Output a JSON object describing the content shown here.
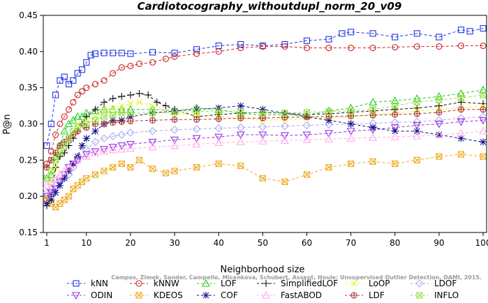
{
  "chart_data": {
    "type": "line",
    "title": "Cardiotocography_withoutdupl_norm_20_v09",
    "xlabel": "Neighborhood size",
    "ylabel": "P@n",
    "xlim": [
      1,
      100
    ],
    "ylim": [
      0.15,
      0.45
    ],
    "xticks": [
      "1",
      "10",
      "20",
      "30",
      "40",
      "50",
      "60",
      "70",
      "80",
      "90",
      "100"
    ],
    "yticks": [
      "0.15",
      "0.20",
      "0.25",
      "0.30",
      "0.35",
      "0.40",
      "0.45"
    ],
    "grid": false,
    "legend_position": "bottom",
    "credit": "Campos, Zimek, Sander, Campello, Micenkova, Schubert, Assent, Houle: Unsupervised Outlier Detection, DAMI, 2015.",
    "series": [
      {
        "name": "kNN",
        "color": "#2233dd",
        "marker": "square",
        "dash": "4,3",
        "x": [
          1,
          2,
          3,
          4,
          5,
          6,
          7,
          8,
          9,
          10,
          11,
          12,
          14,
          16,
          18,
          20,
          25,
          30,
          35,
          40,
          45,
          50,
          55,
          60,
          65,
          68,
          70,
          75,
          80,
          85,
          90,
          95,
          97,
          100
        ],
        "y": [
          0.27,
          0.3,
          0.34,
          0.36,
          0.365,
          0.355,
          0.36,
          0.37,
          0.375,
          0.385,
          0.395,
          0.397,
          0.398,
          0.398,
          0.398,
          0.397,
          0.399,
          0.398,
          0.403,
          0.408,
          0.41,
          0.408,
          0.41,
          0.415,
          0.417,
          0.425,
          0.427,
          0.425,
          0.42,
          0.425,
          0.42,
          0.43,
          0.428,
          0.432
        ]
      },
      {
        "name": "kNNW",
        "color": "#cc2222",
        "marker": "circle",
        "dash": "4,3",
        "x": [
          1,
          2,
          3,
          4,
          5,
          6,
          7,
          8,
          9,
          10,
          12,
          14,
          16,
          18,
          20,
          22,
          25,
          28,
          30,
          35,
          40,
          45,
          50,
          55,
          60,
          65,
          70,
          75,
          80,
          85,
          90,
          95,
          100
        ],
        "y": [
          0.245,
          0.262,
          0.285,
          0.3,
          0.31,
          0.32,
          0.33,
          0.34,
          0.345,
          0.35,
          0.355,
          0.36,
          0.37,
          0.378,
          0.38,
          0.383,
          0.385,
          0.39,
          0.393,
          0.397,
          0.4,
          0.405,
          0.407,
          0.407,
          0.405,
          0.405,
          0.405,
          0.405,
          0.406,
          0.407,
          0.407,
          0.408,
          0.408
        ]
      },
      {
        "name": "LOF",
        "color": "#22cc22",
        "marker": "triangle",
        "dash": "4,3",
        "x": [
          1,
          2,
          3,
          4,
          5,
          6,
          7,
          8,
          9,
          10,
          12,
          14,
          16,
          18,
          20,
          25,
          30,
          35,
          40,
          45,
          50,
          55,
          60,
          65,
          70,
          75,
          80,
          85,
          90,
          95,
          100
        ],
        "y": [
          0.225,
          0.23,
          0.255,
          0.27,
          0.29,
          0.3,
          0.305,
          0.31,
          0.31,
          0.315,
          0.318,
          0.32,
          0.32,
          0.32,
          0.32,
          0.32,
          0.318,
          0.322,
          0.32,
          0.315,
          0.312,
          0.313,
          0.312,
          0.318,
          0.322,
          0.33,
          0.332,
          0.335,
          0.338,
          0.342,
          0.347
        ]
      },
      {
        "name": "SimplifiedLOF",
        "color": "#111111",
        "marker": "plus",
        "dash": "4,3",
        "x": [
          1,
          2,
          3,
          4,
          5,
          6,
          7,
          8,
          9,
          10,
          12,
          14,
          16,
          18,
          20,
          22,
          24,
          26,
          28,
          30,
          35,
          40,
          45,
          50,
          55,
          60,
          65,
          70,
          75,
          80,
          85,
          90,
          95,
          100
        ],
        "y": [
          0.187,
          0.2,
          0.24,
          0.255,
          0.26,
          0.27,
          0.28,
          0.29,
          0.3,
          0.31,
          0.32,
          0.33,
          0.335,
          0.338,
          0.34,
          0.342,
          0.34,
          0.33,
          0.325,
          0.32,
          0.31,
          0.313,
          0.315,
          0.316,
          0.315,
          0.313,
          0.314,
          0.316,
          0.318,
          0.32,
          0.322,
          0.325,
          0.33,
          0.328
        ]
      },
      {
        "name": "LoOP",
        "color": "#eeee22",
        "marker": "x",
        "dash": "4,3",
        "x": [
          1,
          2,
          3,
          4,
          5,
          6,
          7,
          8,
          9,
          10,
          12,
          14,
          16,
          18,
          20,
          22,
          25,
          30,
          35,
          40,
          45,
          50,
          55,
          60,
          65,
          70,
          75,
          80,
          85,
          90,
          95,
          100
        ],
        "y": [
          0.2,
          0.22,
          0.24,
          0.26,
          0.27,
          0.28,
          0.29,
          0.3,
          0.3,
          0.305,
          0.31,
          0.318,
          0.322,
          0.325,
          0.328,
          0.33,
          0.325,
          0.315,
          0.312,
          0.31,
          0.308,
          0.305,
          0.306,
          0.307,
          0.308,
          0.31,
          0.313,
          0.315,
          0.318,
          0.32,
          0.322,
          0.325
        ]
      },
      {
        "name": "LDOF",
        "color": "#aaaaee",
        "marker": "diamond",
        "dash": "4,3",
        "x": [
          1,
          2,
          3,
          4,
          5,
          6,
          7,
          8,
          10,
          12,
          14,
          16,
          18,
          20,
          25,
          30,
          35,
          40,
          45,
          50,
          55,
          60,
          65,
          70,
          75,
          80,
          85,
          90,
          95,
          100
        ],
        "y": [
          0.205,
          0.21,
          0.215,
          0.22,
          0.225,
          0.23,
          0.24,
          0.25,
          0.265,
          0.275,
          0.28,
          0.283,
          0.285,
          0.288,
          0.29,
          0.292,
          0.293,
          0.294,
          0.295,
          0.296,
          0.297,
          0.298,
          0.299,
          0.3,
          0.301,
          0.302,
          0.303,
          0.305,
          0.308,
          0.31
        ]
      },
      {
        "name": "ODIN",
        "color": "#9933dd",
        "marker": "triangle-down",
        "dash": "4,3",
        "x": [
          1,
          2,
          3,
          4,
          5,
          6,
          7,
          8,
          10,
          12,
          14,
          16,
          18,
          20,
          25,
          30,
          35,
          40,
          45,
          50,
          55,
          60,
          65,
          70,
          75,
          80,
          85,
          90,
          95,
          100
        ],
        "y": [
          0.2,
          0.205,
          0.21,
          0.22,
          0.23,
          0.24,
          0.245,
          0.25,
          0.258,
          0.262,
          0.265,
          0.268,
          0.27,
          0.272,
          0.275,
          0.278,
          0.28,
          0.282,
          0.285,
          0.285,
          0.284,
          0.285,
          0.287,
          0.29,
          0.292,
          0.295,
          0.298,
          0.3,
          0.303,
          0.305
        ]
      },
      {
        "name": "KDEOS",
        "color": "#eeaa22",
        "marker": "square-x",
        "dash": "4,3",
        "x": [
          1,
          2,
          3,
          4,
          5,
          6,
          7,
          8,
          9,
          10,
          12,
          14,
          16,
          18,
          20,
          22,
          25,
          28,
          30,
          35,
          40,
          45,
          50,
          55,
          60,
          65,
          70,
          75,
          80,
          85,
          90,
          95,
          100
        ],
        "y": [
          0.195,
          0.19,
          0.185,
          0.19,
          0.195,
          0.2,
          0.21,
          0.215,
          0.22,
          0.225,
          0.23,
          0.235,
          0.24,
          0.245,
          0.24,
          0.25,
          0.238,
          0.232,
          0.235,
          0.24,
          0.245,
          0.242,
          0.225,
          0.22,
          0.23,
          0.24,
          0.245,
          0.248,
          0.245,
          0.25,
          0.255,
          0.258,
          0.255
        ]
      },
      {
        "name": "COF",
        "color": "#111188",
        "marker": "asterisk",
        "dash": "4,3",
        "x": [
          1,
          2,
          3,
          4,
          5,
          6,
          7,
          8,
          9,
          10,
          12,
          14,
          16,
          18,
          20,
          25,
          30,
          35,
          40,
          45,
          50,
          55,
          60,
          65,
          70,
          75,
          80,
          85,
          90,
          95,
          100
        ],
        "y": [
          0.19,
          0.195,
          0.205,
          0.215,
          0.225,
          0.235,
          0.245,
          0.255,
          0.27,
          0.28,
          0.29,
          0.3,
          0.305,
          0.305,
          0.31,
          0.315,
          0.318,
          0.32,
          0.322,
          0.325,
          0.32,
          0.315,
          0.31,
          0.305,
          0.3,
          0.295,
          0.29,
          0.29,
          0.285,
          0.28,
          0.275
        ]
      },
      {
        "name": "FastABOD",
        "color": "#ffaaee",
        "marker": "triangle",
        "dash": "4,3",
        "x": [
          1,
          2,
          3,
          4,
          5,
          6,
          7,
          8,
          10,
          12,
          14,
          16,
          18,
          20,
          25,
          30,
          35,
          40,
          45,
          50,
          55,
          60,
          65,
          70,
          75,
          80,
          85,
          90,
          95,
          100
        ],
        "y": [
          0.215,
          0.22,
          0.225,
          0.23,
          0.235,
          0.24,
          0.245,
          0.25,
          0.255,
          0.26,
          0.262,
          0.264,
          0.265,
          0.266,
          0.268,
          0.27,
          0.272,
          0.274,
          0.275,
          0.276,
          0.277,
          0.278,
          0.279,
          0.28,
          0.281,
          0.282,
          0.283,
          0.285,
          0.287,
          0.29
        ]
      },
      {
        "name": "LDF",
        "color": "#aa3333",
        "marker": "circle-plus",
        "dash": "4,3",
        "x": [
          1,
          2,
          3,
          4,
          5,
          6,
          7,
          8,
          10,
          12,
          14,
          16,
          18,
          20,
          25,
          30,
          35,
          40,
          45,
          50,
          55,
          60,
          65,
          70,
          75,
          80,
          85,
          90,
          95,
          100
        ],
        "y": [
          0.24,
          0.25,
          0.26,
          0.27,
          0.275,
          0.28,
          0.285,
          0.29,
          0.295,
          0.3,
          0.3,
          0.302,
          0.303,
          0.304,
          0.305,
          0.306,
          0.306,
          0.307,
          0.308,
          0.308,
          0.309,
          0.31,
          0.31,
          0.311,
          0.312,
          0.313,
          0.314,
          0.316,
          0.32,
          0.32
        ]
      },
      {
        "name": "INFLO",
        "color": "#99dd44",
        "marker": "square-x",
        "dash": "4,3",
        "x": [
          1,
          2,
          3,
          4,
          5,
          6,
          7,
          8,
          10,
          12,
          14,
          16,
          18,
          20,
          25,
          30,
          35,
          40,
          45,
          50,
          55,
          60,
          65,
          70,
          75,
          80,
          85,
          90,
          95,
          100
        ],
        "y": [
          0.225,
          0.235,
          0.25,
          0.26,
          0.27,
          0.28,
          0.29,
          0.295,
          0.3,
          0.305,
          0.31,
          0.312,
          0.315,
          0.315,
          0.315,
          0.316,
          0.317,
          0.318,
          0.316,
          0.315,
          0.315,
          0.316,
          0.317,
          0.318,
          0.32,
          0.325,
          0.33,
          0.333,
          0.336,
          0.34
        ]
      }
    ]
  }
}
